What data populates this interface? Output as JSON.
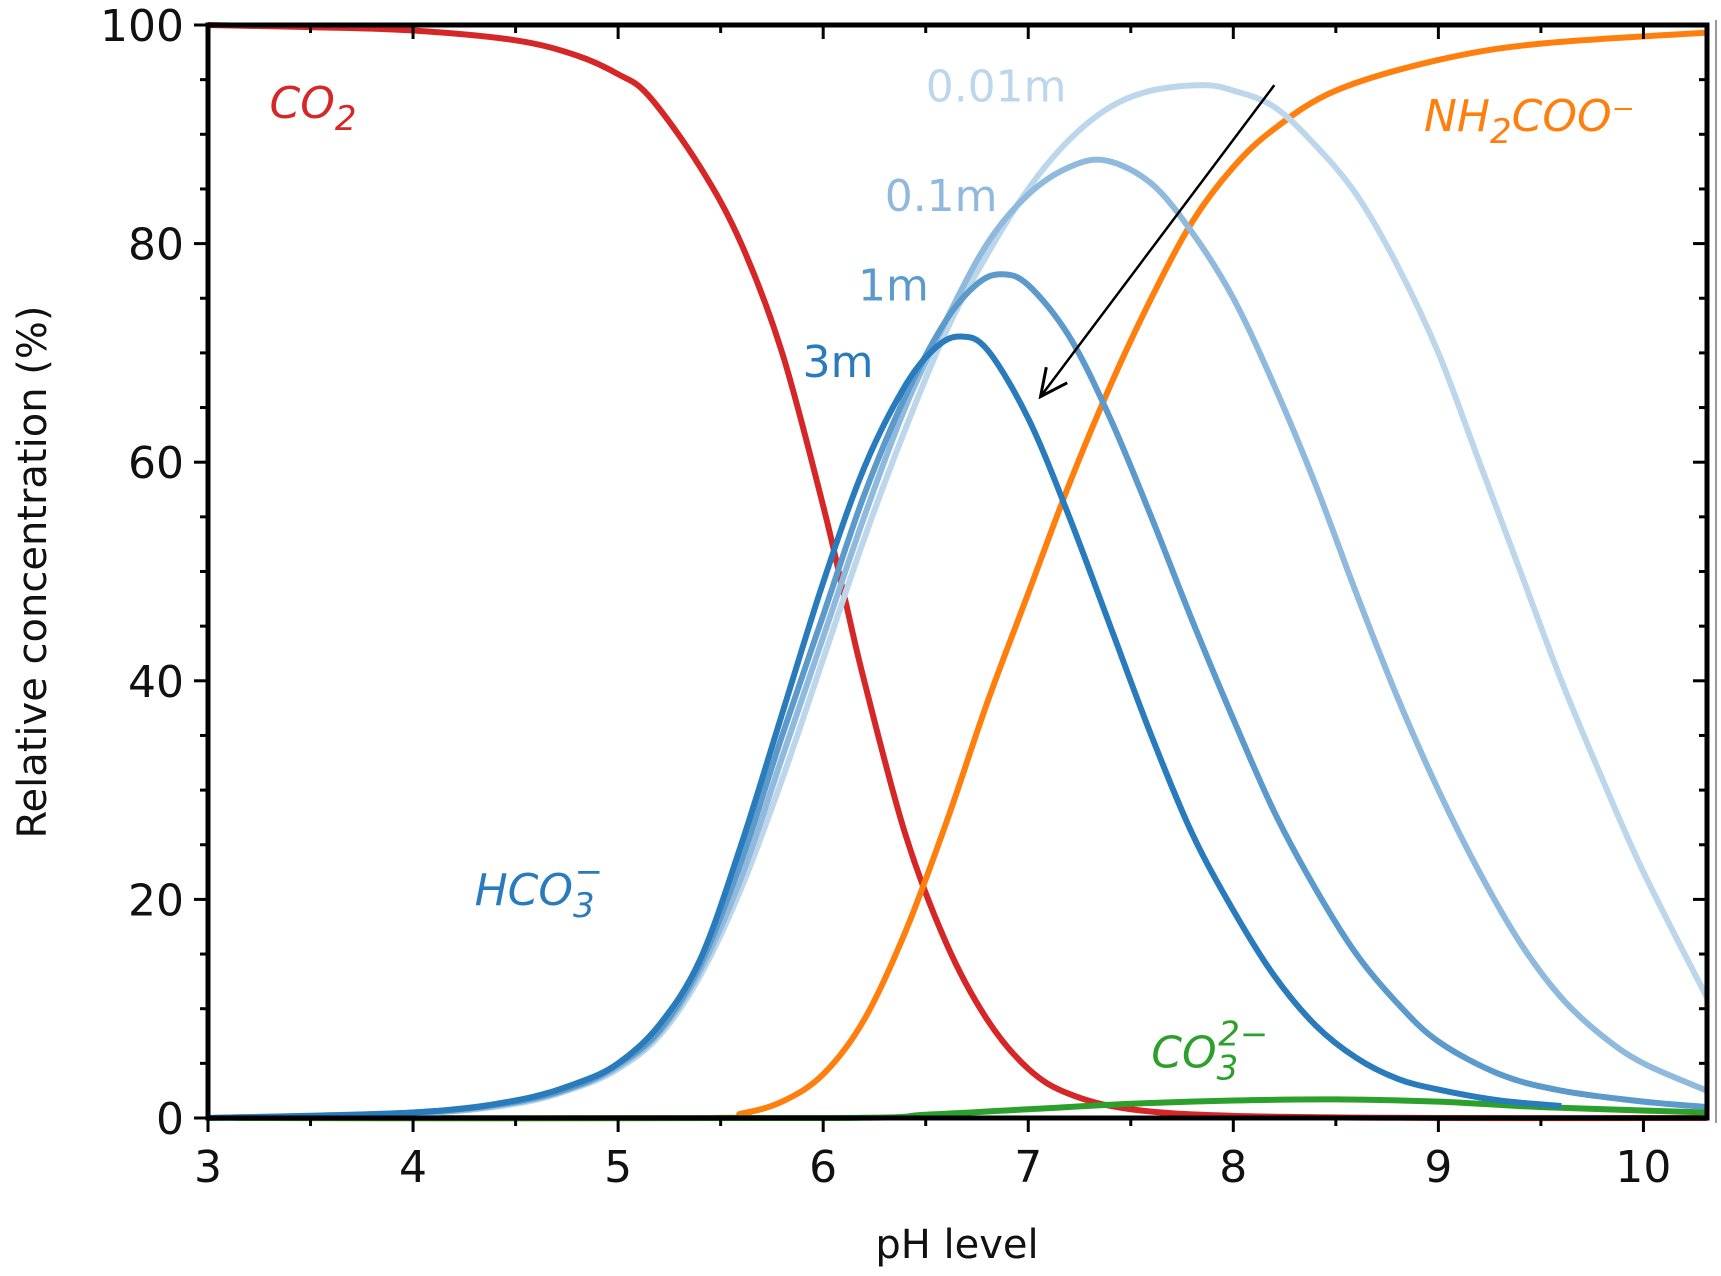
{
  "chart_data": {
    "type": "line",
    "title": "",
    "xlabel": "pH level",
    "ylabel": "Relative concentration (%)",
    "xlim": [
      3,
      10.31
    ],
    "ylim": [
      0,
      100
    ],
    "xticks": [
      3,
      4,
      5,
      6,
      7,
      8,
      9,
      10
    ],
    "yticks": [
      0,
      20,
      40,
      60,
      80,
      100
    ],
    "x_minor_step": 0.5,
    "y_minor_step": 5,
    "grid": false,
    "series": [
      {
        "name": "CO2",
        "color": "#d62728",
        "points": [
          [
            3,
            100
          ],
          [
            3.5,
            99.8
          ],
          [
            4,
            99.5
          ],
          [
            4.5,
            98.6
          ],
          [
            4.8,
            97.2
          ],
          [
            5,
            95.5
          ],
          [
            5.15,
            93.5
          ],
          [
            5.4,
            87
          ],
          [
            5.6,
            80
          ],
          [
            5.8,
            70
          ],
          [
            6.0,
            56
          ],
          [
            6.1,
            48
          ],
          [
            6.2,
            40
          ],
          [
            6.4,
            26
          ],
          [
            6.6,
            16
          ],
          [
            6.8,
            9
          ],
          [
            7.0,
            4.5
          ],
          [
            7.2,
            2.2
          ],
          [
            7.5,
            0.8
          ],
          [
            8,
            0.2
          ],
          [
            9,
            0
          ],
          [
            10.31,
            0
          ]
        ]
      },
      {
        "name": "NH2COO-",
        "color": "#ff7f0e",
        "points": [
          [
            3,
            0
          ],
          [
            5.4,
            0
          ],
          [
            5.6,
            0.4
          ],
          [
            5.8,
            1.5
          ],
          [
            6.0,
            4
          ],
          [
            6.2,
            9
          ],
          [
            6.4,
            17
          ],
          [
            6.6,
            27
          ],
          [
            6.8,
            38
          ],
          [
            7.0,
            48
          ],
          [
            7.2,
            58
          ],
          [
            7.4,
            67
          ],
          [
            7.6,
            75
          ],
          [
            7.8,
            82
          ],
          [
            8.0,
            87
          ],
          [
            8.2,
            90.5
          ],
          [
            8.5,
            94
          ],
          [
            9,
            96.8
          ],
          [
            9.5,
            98.3
          ],
          [
            10.31,
            99.3
          ]
        ]
      },
      {
        "name": "CO3 2-",
        "color": "#2ca02c",
        "points": [
          [
            3,
            0
          ],
          [
            6.0,
            0
          ],
          [
            6.5,
            0.3
          ],
          [
            7.0,
            0.8
          ],
          [
            7.5,
            1.3
          ],
          [
            8.0,
            1.6
          ],
          [
            8.5,
            1.7
          ],
          [
            9.0,
            1.5
          ],
          [
            9.5,
            1.0
          ],
          [
            10.31,
            0.5
          ]
        ]
      },
      {
        "name": "HCO3- 0.01m",
        "color": "#bcd7ec",
        "points": [
          [
            3,
            0
          ],
          [
            4,
            0.4
          ],
          [
            4.5,
            1.3
          ],
          [
            4.8,
            2.8
          ],
          [
            5,
            4.5
          ],
          [
            5.2,
            7.5
          ],
          [
            5.4,
            13
          ],
          [
            5.6,
            21
          ],
          [
            5.8,
            31
          ],
          [
            6.0,
            42
          ],
          [
            6.2,
            53
          ],
          [
            6.4,
            63
          ],
          [
            6.6,
            72
          ],
          [
            6.8,
            79
          ],
          [
            7.0,
            85
          ],
          [
            7.2,
            89.5
          ],
          [
            7.4,
            92.5
          ],
          [
            7.6,
            94
          ],
          [
            7.85,
            94.5
          ],
          [
            8.0,
            94
          ],
          [
            8.2,
            92.5
          ],
          [
            8.4,
            89
          ],
          [
            8.6,
            84.5
          ],
          [
            8.8,
            78
          ],
          [
            9.0,
            70
          ],
          [
            9.2,
            60
          ],
          [
            9.4,
            50
          ],
          [
            9.6,
            40
          ],
          [
            9.8,
            31
          ],
          [
            10.0,
            22.5
          ],
          [
            10.31,
            11
          ]
        ]
      },
      {
        "name": "HCO3- 0.1m",
        "color": "#8fbadd",
        "points": [
          [
            3,
            0
          ],
          [
            4,
            0.4
          ],
          [
            4.5,
            1.4
          ],
          [
            4.8,
            2.9
          ],
          [
            5,
            4.7
          ],
          [
            5.2,
            7.8
          ],
          [
            5.4,
            13.5
          ],
          [
            5.6,
            22
          ],
          [
            5.8,
            33
          ],
          [
            6.0,
            44
          ],
          [
            6.2,
            55
          ],
          [
            6.4,
            65
          ],
          [
            6.6,
            73
          ],
          [
            6.8,
            80
          ],
          [
            7.0,
            84.5
          ],
          [
            7.2,
            87
          ],
          [
            7.38,
            87.6
          ],
          [
            7.6,
            85.5
          ],
          [
            7.8,
            81
          ],
          [
            8.0,
            75
          ],
          [
            8.2,
            67
          ],
          [
            8.4,
            58
          ],
          [
            8.6,
            48
          ],
          [
            8.8,
            38.5
          ],
          [
            9.0,
            30
          ],
          [
            9.2,
            22.5
          ],
          [
            9.4,
            16
          ],
          [
            9.6,
            11
          ],
          [
            9.8,
            7.5
          ],
          [
            10.0,
            5
          ],
          [
            10.31,
            2.5
          ]
        ]
      },
      {
        "name": "HCO3- 1m",
        "color": "#5b9acb",
        "points": [
          [
            3,
            0
          ],
          [
            4,
            0.5
          ],
          [
            4.5,
            1.5
          ],
          [
            4.8,
            3
          ],
          [
            5,
            4.9
          ],
          [
            5.2,
            8
          ],
          [
            5.4,
            14
          ],
          [
            5.6,
            23.5
          ],
          [
            5.8,
            35
          ],
          [
            6.0,
            46
          ],
          [
            6.2,
            57
          ],
          [
            6.4,
            66
          ],
          [
            6.6,
            73
          ],
          [
            6.75,
            76.3
          ],
          [
            6.87,
            77.2
          ],
          [
            7.0,
            76.2
          ],
          [
            7.2,
            71.5
          ],
          [
            7.4,
            64
          ],
          [
            7.6,
            55
          ],
          [
            7.8,
            45.5
          ],
          [
            8.0,
            36.5
          ],
          [
            8.2,
            28
          ],
          [
            8.4,
            21
          ],
          [
            8.6,
            15
          ],
          [
            8.8,
            10.5
          ],
          [
            9.0,
            7
          ],
          [
            9.3,
            4
          ],
          [
            9.6,
            2.5
          ],
          [
            10.0,
            1.5
          ],
          [
            10.31,
            1
          ]
        ]
      },
      {
        "name": "HCO3- 3m",
        "color": "#2a7bbb",
        "points": [
          [
            3,
            0
          ],
          [
            4,
            0.5
          ],
          [
            4.5,
            1.6
          ],
          [
            4.8,
            3.2
          ],
          [
            5,
            5
          ],
          [
            5.2,
            8.5
          ],
          [
            5.4,
            14.5
          ],
          [
            5.6,
            25
          ],
          [
            5.8,
            37
          ],
          [
            6.0,
            49
          ],
          [
            6.2,
            59.5
          ],
          [
            6.4,
            67
          ],
          [
            6.55,
            70.5
          ],
          [
            6.67,
            71.5
          ],
          [
            6.8,
            70.3
          ],
          [
            7.0,
            64
          ],
          [
            7.2,
            55
          ],
          [
            7.4,
            45
          ],
          [
            7.6,
            35
          ],
          [
            7.8,
            26
          ],
          [
            8.0,
            19
          ],
          [
            8.2,
            13
          ],
          [
            8.4,
            8.5
          ],
          [
            8.6,
            5.5
          ],
          [
            8.8,
            3.6
          ],
          [
            9.0,
            2.6
          ],
          [
            9.3,
            1.6
          ],
          [
            9.6,
            1.1
          ]
        ]
      }
    ],
    "annotations": [
      {
        "main": "CO",
        "sub": "2",
        "sup": "",
        "x": 3.3,
        "y": 91.5,
        "color": "#d62728",
        "italic": true
      },
      {
        "main": "HCO",
        "sub": "3",
        "sup": "−",
        "x": 4.3,
        "y": 19.5,
        "color": "#2a7bbb",
        "italic": true
      },
      {
        "main": "NH",
        "sub": "2",
        "sup": "",
        "tail": "COO⁻",
        "x": 8.93,
        "y": 90.3,
        "color": "#ff7f0e",
        "italic": true
      },
      {
        "main": "CO",
        "sub": "3",
        "sup": "2−",
        "x": 7.6,
        "y": 4.6,
        "color": "#2ca02c",
        "italic": true
      },
      {
        "main": "0.01m",
        "x": 6.5,
        "y": 93,
        "color": "#bcd7ec",
        "italic": false
      },
      {
        "main": "0.1m",
        "x": 6.3,
        "y": 83,
        "color": "#8fbadd",
        "italic": false
      },
      {
        "main": "1m",
        "x": 6.17,
        "y": 74.8,
        "color": "#5b9acb",
        "italic": false
      },
      {
        "main": "3m",
        "x": 5.9,
        "y": 67.8,
        "color": "#2a7bbb",
        "italic": false
      }
    ],
    "arrow": {
      "from": [
        8.2,
        94.5
      ],
      "to": [
        7.06,
        66
      ],
      "meaning": "increasing concentration"
    }
  }
}
